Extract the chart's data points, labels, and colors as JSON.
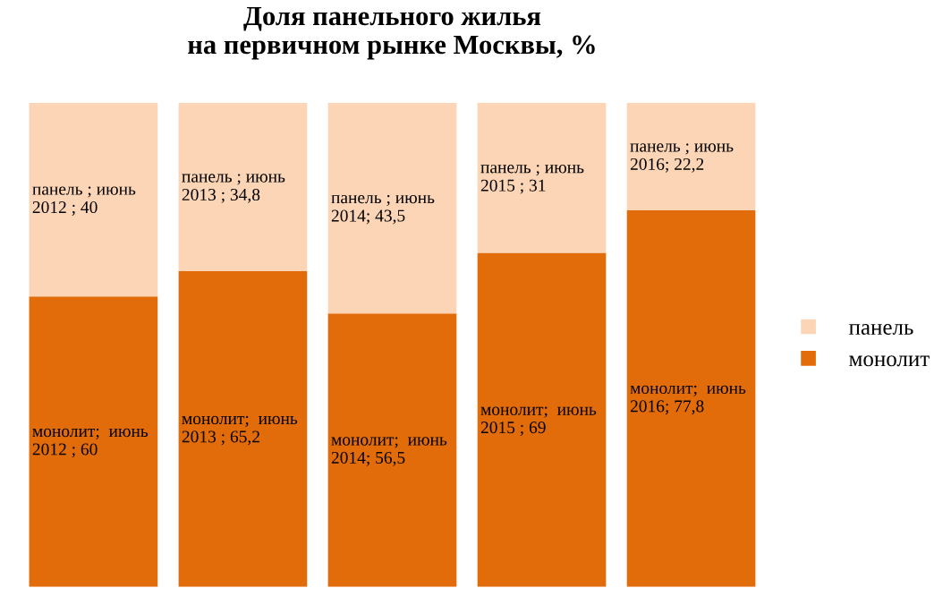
{
  "chart_data": {
    "type": "bar",
    "stacked": true,
    "title": "Доля панельного жилья\nна первичном рынке Москвы, %",
    "categories": [
      null,
      null,
      null,
      null,
      null
    ],
    "series": [
      {
        "name": "монолит",
        "color": "#e36c0a",
        "values": [
          60,
          65.2,
          56.5,
          69,
          77.8
        ],
        "value_labels": [
          "монолит;  июнь\n2012 ; 60",
          "монолит;  июнь\n2013 ; 65,2",
          "монолит;  июнь\n2014; 56,5",
          "монолит;  июнь\n2015 ; 69",
          "монолит;  июнь\n2016; 77,8"
        ]
      },
      {
        "name": "панель",
        "color": "#fbd5b5",
        "values": [
          40,
          34.8,
          43.5,
          31,
          22.2
        ],
        "value_labels": [
          "панель ; июнь\n2012 ; 40",
          "панель ; июнь\n2013 ; 34,8",
          "панель ; июнь\n2014; 43,5",
          "панель ; июнь\n2015 ; 31",
          "панель ; июнь\n2016; 22,2"
        ]
      }
    ],
    "legend": "right",
    "grid": false,
    "tick_labels": false
  }
}
